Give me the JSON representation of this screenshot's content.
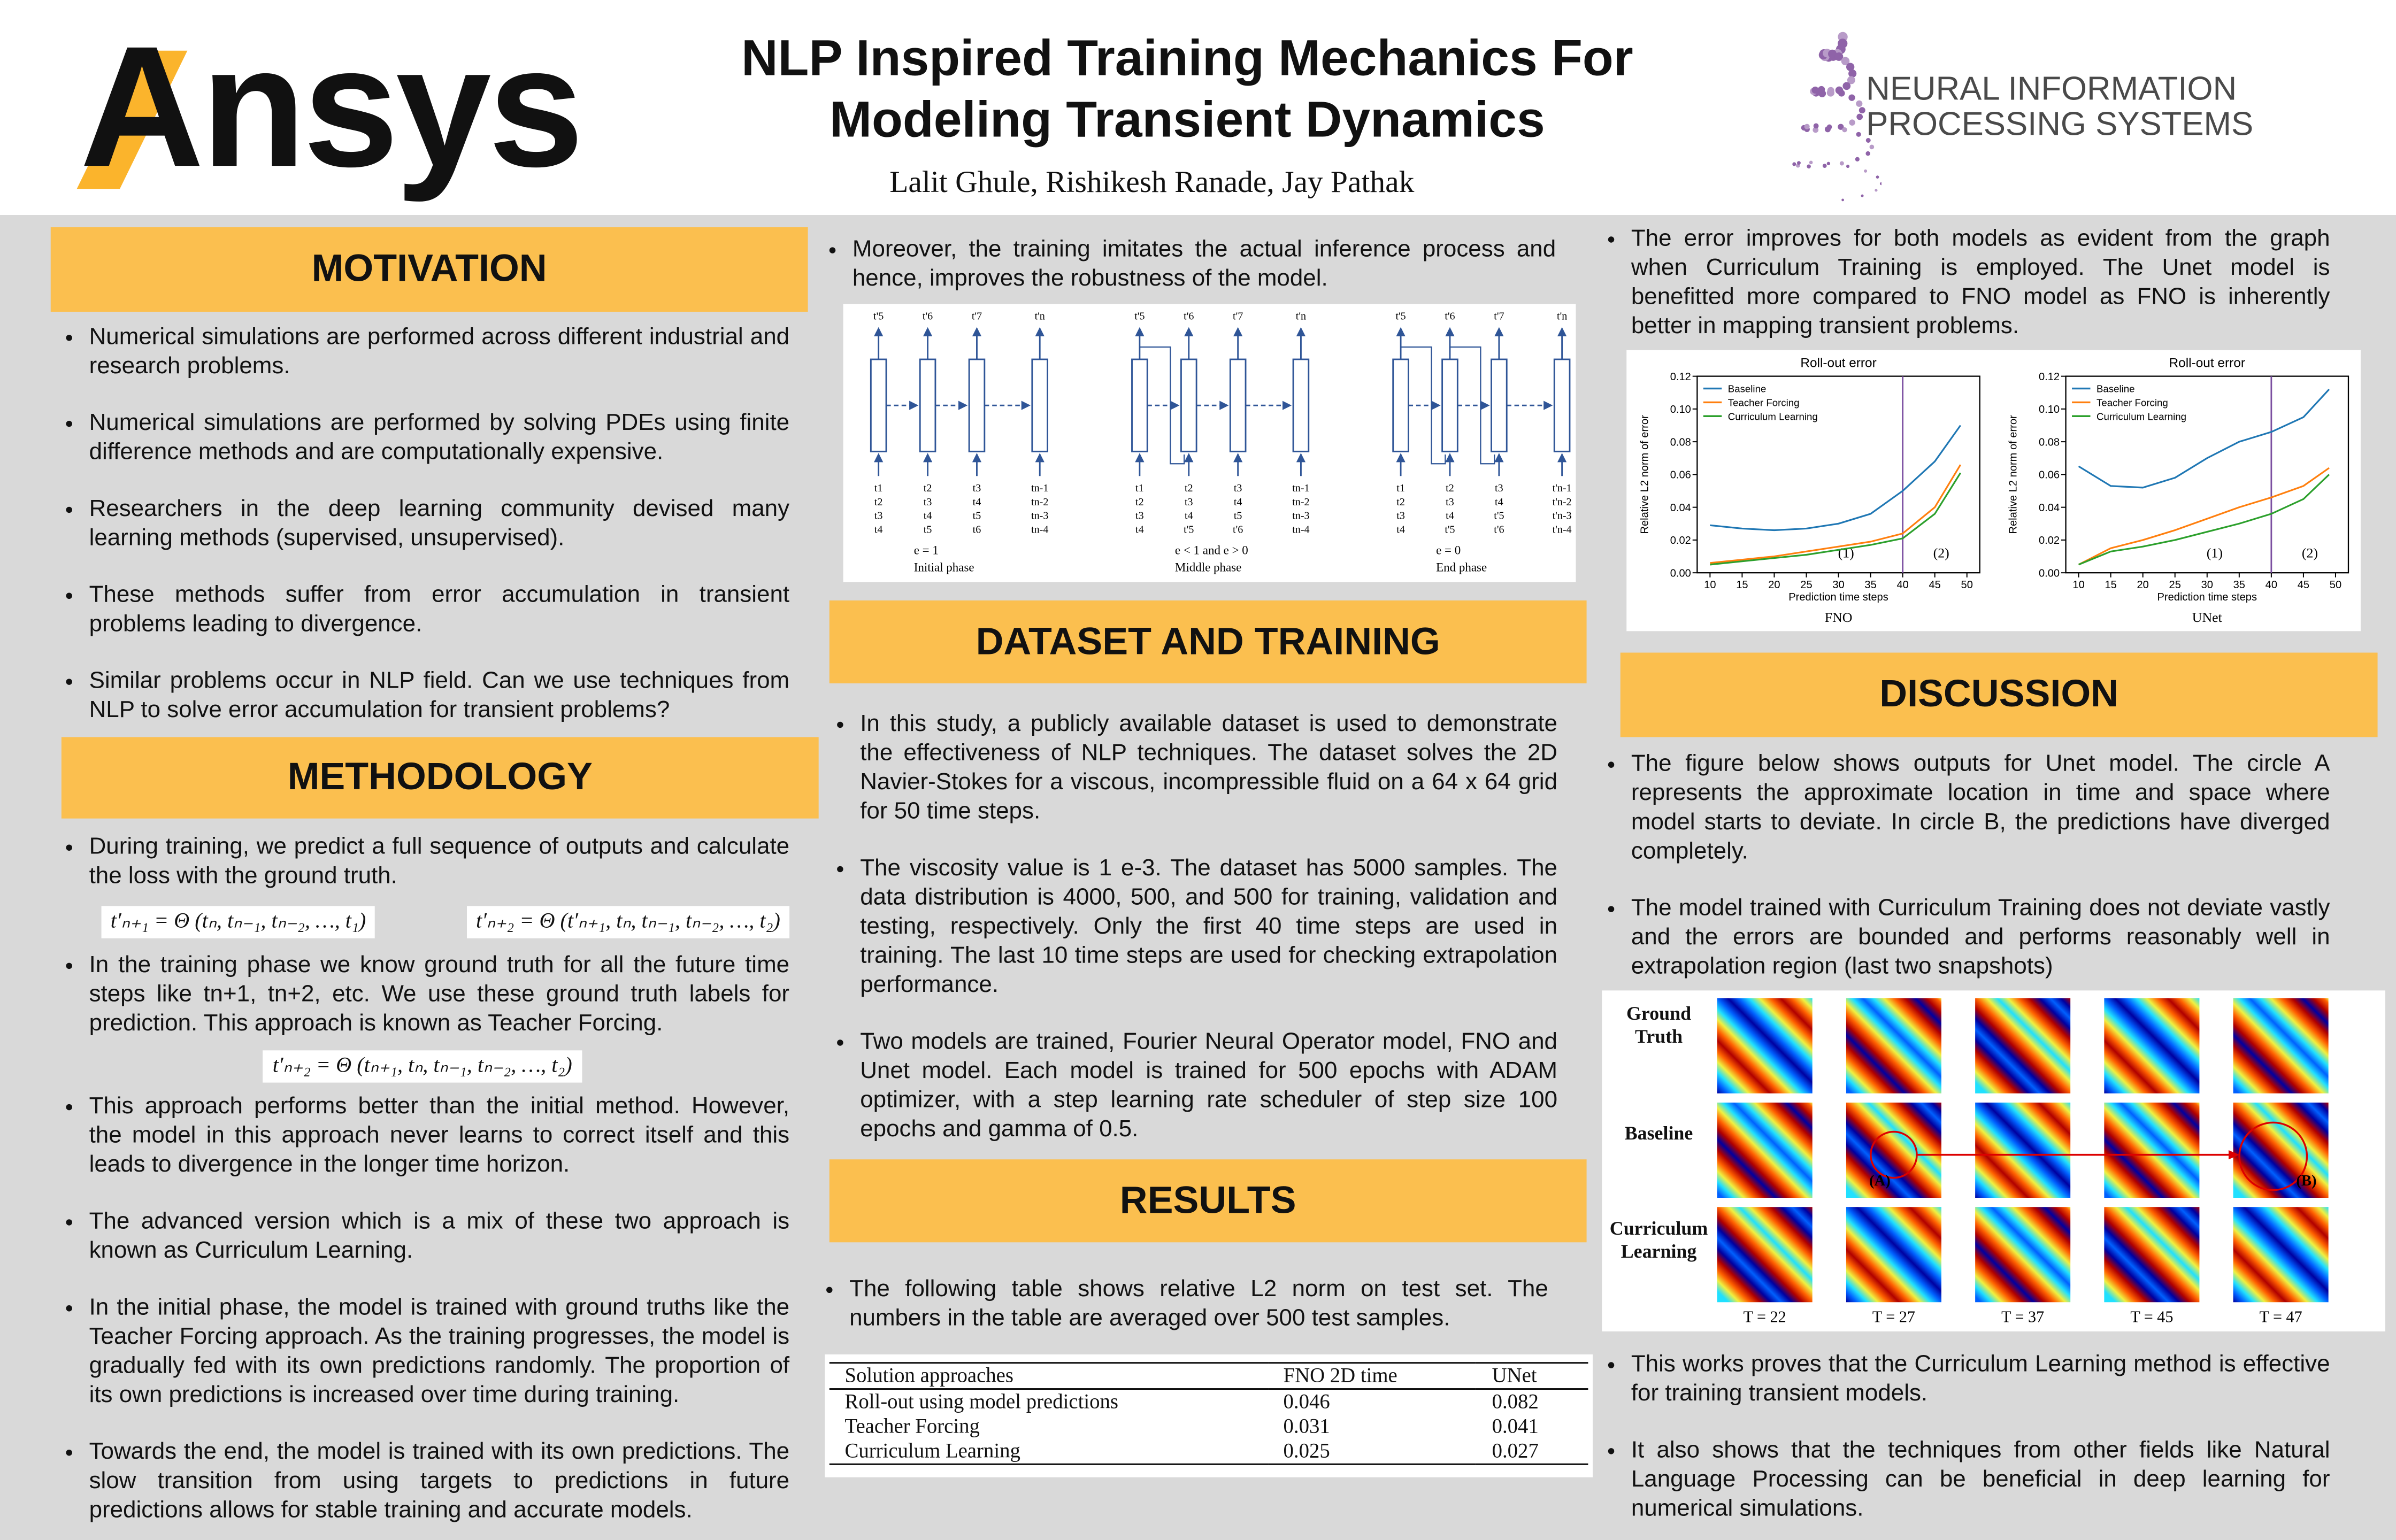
{
  "header": {
    "logo_left": "Ansys",
    "title": [
      "NLP Inspired Training Mechanics For",
      "Modeling Transient Dynamics"
    ],
    "authors": "Lalit Ghule, Rishikesh Ranade, Jay Pathak",
    "logo_right": [
      "NEURAL INFORMATION",
      "PROCESSING SYSTEMS"
    ]
  },
  "motivation": {
    "heading": "MOTIVATION",
    "bullets": [
      "Numerical simulations are performed across different industrial and research problems.",
      "Numerical simulations are performed by solving PDEs using finite difference methods and are computationally expensive.",
      "Researchers in the deep learning community devised many learning methods (supervised, unsupervised).",
      "These methods suffer from error accumulation in transient problems leading to divergence.",
      "Similar problems occur in NLP field. Can we use techniques from NLP to solve error accumulation for transient problems?"
    ]
  },
  "methodology": {
    "heading": "METHODOLOGY",
    "bullets_1": [
      "During training, we predict a full sequence of outputs and calculate the loss with the ground truth."
    ],
    "equations_1": [
      "t′ₙ₊₁ = Θ (tₙ, tₙ₋₁, tₙ₋₂, …, t₁)",
      "t′ₙ₊₂ = Θ (t′ₙ₊₁, tₙ, tₙ₋₁, tₙ₋₂, …, t₂)"
    ],
    "bullets_2": [
      "In the training phase we know ground truth for all the future time steps like tn+1, tn+2, etc. We use these ground truth labels for prediction. This approach is known as Teacher Forcing."
    ],
    "equation_2": "t′ₙ₊₂ = Θ (tₙ₊₁, tₙ, tₙ₋₁, tₙ₋₂, …, t₂)",
    "bullets_3": [
      "This approach performs better than the initial method. However, the model in this approach never learns to correct itself and this leads to divergence in the longer time horizon.",
      "The advanced version which is a mix of these two approach is known as Curriculum Learning.",
      "In the initial phase, the model is trained with ground truths like the Teacher Forcing approach. As the training progresses, the model is gradually fed with its own predictions randomly. The proportion of its own predictions is increased over time during training.",
      "Towards the end, the model is trained with its own predictions. The slow transition from using targets to predictions in future predictions allows for stable training and accurate models."
    ]
  },
  "training_diagram": {
    "intro_bullets": [
      "Moreover, the training imitates the actual inference process and hence, improves the robustness of the model."
    ],
    "phases": [
      {
        "top": [
          "t'5",
          "t'6",
          "t'7",
          "t'n"
        ],
        "columns": [
          [
            "t1",
            "t2",
            "t3",
            "t4"
          ],
          [
            "t2",
            "t3",
            "t4",
            "t5"
          ],
          [
            "t3",
            "t4",
            "t5",
            "t6"
          ],
          [
            "tn-1",
            "tn-2",
            "tn-3",
            "tn-4"
          ]
        ],
        "condition": "e = 1",
        "phase": "Initial phase"
      },
      {
        "top": [
          "t'5",
          "t'6",
          "t'7",
          "t'n"
        ],
        "columns": [
          [
            "t1",
            "t2",
            "t3",
            "t4"
          ],
          [
            "t2",
            "t3",
            "t4",
            "t'5"
          ],
          [
            "t3",
            "t4",
            "t5",
            "t'6"
          ],
          [
            "tn-1",
            "tn-2",
            "tn-3",
            "tn-4"
          ]
        ],
        "condition": "e < 1 and e > 0",
        "phase": "Middle phase"
      },
      {
        "top": [
          "t'5",
          "t'6",
          "t'7",
          "t'n"
        ],
        "columns": [
          [
            "t1",
            "t2",
            "t3",
            "t4"
          ],
          [
            "t2",
            "t3",
            "t4",
            "t'5"
          ],
          [
            "t3",
            "t4",
            "t'5",
            "t'6"
          ],
          [
            "t'n-1",
            "t'n-2",
            "t'n-3",
            "t'n-4"
          ]
        ],
        "condition": "e = 0",
        "phase": "End phase"
      }
    ]
  },
  "dataset_and_training": {
    "heading": "DATASET AND TRAINING",
    "bullets": [
      "In this study, a publicly available dataset is used to demonstrate the effectiveness of NLP techniques. The dataset solves the 2D Navier-Stokes for a viscous, incompressible fluid on a 64 x 64 grid for 50 time steps.",
      "The viscosity value is 1 e-3. The dataset has 5000 samples. The data distribution is 4000, 500, and 500 for training, validation and testing, respectively. Only the first 40 time steps are used in training. The last 10 time steps are used for checking extrapolation performance.",
      "Two models are trained, Fourier Neural Operator model, FNO and Unet model. Each model is trained for 500 epochs with ADAM optimizer, with a step learning rate scheduler of step size 100 epochs and gamma of 0.5."
    ]
  },
  "results": {
    "heading": "RESULTS",
    "bullets": [
      "The following table shows relative L2 norm on test set. The numbers in the table are averaged over 500 test samples."
    ],
    "table": {
      "header": [
        "Solution approaches",
        "FNO 2D time",
        "UNet"
      ],
      "rows": [
        [
          "Roll-out using model predictions",
          0.046,
          0.082
        ],
        [
          "Teacher Forcing",
          0.031,
          0.041
        ],
        [
          "Curriculum Learning",
          0.025,
          0.027
        ]
      ]
    }
  },
  "chart_intro": [
    "The error improves for both models as evident from the graph when Curriculum Training is employed. The Unet model is benefitted more compared to FNO model as FNO is inherently better in mapping transient problems."
  ],
  "chart_data": [
    {
      "type": "line",
      "title": "Roll-out error",
      "caption": "FNO",
      "x_label": "Prediction time steps",
      "y_label": "Relative L2 norm of error",
      "x": [
        10,
        15,
        20,
        25,
        30,
        35,
        40,
        45,
        49
      ],
      "series": [
        {
          "name": "Baseline",
          "color": "#1f77b4",
          "values": [
            0.029,
            0.027,
            0.026,
            0.027,
            0.03,
            0.036,
            0.05,
            0.068,
            0.09
          ]
        },
        {
          "name": "Teacher Forcing",
          "color": "#ff7f0e",
          "values": [
            0.006,
            0.008,
            0.01,
            0.013,
            0.016,
            0.019,
            0.024,
            0.04,
            0.066
          ]
        },
        {
          "name": "Curriculum Learning",
          "color": "#2ca02c",
          "values": [
            0.005,
            0.007,
            0.009,
            0.011,
            0.014,
            0.017,
            0.021,
            0.036,
            0.061
          ]
        }
      ],
      "xlim": [
        8,
        52
      ],
      "xticks": [
        10,
        15,
        20,
        25,
        30,
        35,
        40,
        45,
        50
      ],
      "ylim": [
        0,
        0.12
      ],
      "yticks": [
        {
          "value": 0,
          "label": "0.00"
        },
        {
          "value": 0.02,
          "label": "0.02"
        },
        {
          "value": 0.04,
          "label": "0.04"
        },
        {
          "value": 0.06,
          "label": "0.06"
        },
        {
          "value": 0.08,
          "label": "0.08"
        },
        {
          "value": 0.1,
          "label": "0.10"
        },
        {
          "value": 0.12,
          "label": "0.12"
        }
      ],
      "vline": 40,
      "vline_color": "#7b4fa0",
      "legend": "upper left",
      "annotations": [
        "(1)",
        "(2)"
      ]
    },
    {
      "type": "line",
      "title": "Roll-out error",
      "caption": "UNet",
      "x_label": "Prediction time steps",
      "y_label": "Relative L2 norm of error",
      "x": [
        10,
        15,
        20,
        25,
        30,
        35,
        40,
        45,
        49
      ],
      "series": [
        {
          "name": "Baseline",
          "color": "#1f77b4",
          "values": [
            0.065,
            0.053,
            0.052,
            0.058,
            0.07,
            0.08,
            0.086,
            0.095,
            0.112
          ]
        },
        {
          "name": "Teacher Forcing",
          "color": "#ff7f0e",
          "values": [
            0.005,
            0.015,
            0.02,
            0.026,
            0.033,
            0.04,
            0.046,
            0.053,
            0.064
          ]
        },
        {
          "name": "Curriculum Learning",
          "color": "#2ca02c",
          "values": [
            0.005,
            0.013,
            0.016,
            0.02,
            0.025,
            0.03,
            0.036,
            0.045,
            0.06
          ]
        }
      ],
      "xlim": [
        8,
        52
      ],
      "xticks": [
        10,
        15,
        20,
        25,
        30,
        35,
        40,
        45,
        50
      ],
      "ylim": [
        0,
        0.12
      ],
      "yticks": [
        {
          "value": 0,
          "label": "0.00"
        },
        {
          "value": 0.02,
          "label": "0.02"
        },
        {
          "value": 0.04,
          "label": "0.04"
        },
        {
          "value": 0.06,
          "label": "0.06"
        },
        {
          "value": 0.08,
          "label": "0.08"
        },
        {
          "value": 0.1,
          "label": "0.10"
        },
        {
          "value": 0.12,
          "label": "0.12"
        }
      ],
      "vline": 40,
      "vline_color": "#7b4fa0",
      "legend": "upper left",
      "annotations": [
        "(1)",
        "(2)"
      ]
    }
  ],
  "discussion": {
    "heading": "DISCUSSION",
    "bullets": [
      "The figure below shows outputs for Unet model. The circle A represents the approximate location in time and space where model starts to deviate. In circle B, the predictions have diverged completely.",
      "The model trained with Curriculum Training does not deviate vastly and the errors are bounded and performs reasonably well in extrapolation region (last two snapshots)"
    ],
    "figure": {
      "row_labels": [
        "Ground Truth",
        "Baseline",
        "Curriculum Learning"
      ],
      "time_labels": [
        "T = 22",
        "T = 27",
        "T = 37",
        "T = 45",
        "T = 47"
      ],
      "markers": [
        "(A)",
        "(B)"
      ]
    },
    "conclusion_bullets": [
      "This works proves that the Curriculum Learning method is effective for training transient models.",
      "It also shows that the techniques from other fields like Natural Language Processing can be beneficial in deep learning for numerical simulations."
    ]
  }
}
